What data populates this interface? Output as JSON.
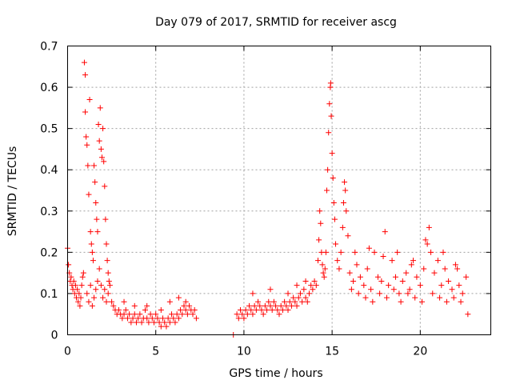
{
  "chart_data": {
    "type": "scatter",
    "title": "Day 079 of 2017, SRMTID for receiver ascg",
    "xlabel": "GPS time / hours",
    "ylabel": "SRMTID / TECUs",
    "xlim": [
      0,
      24
    ],
    "ylim": [
      0,
      0.7
    ],
    "xticks": [
      0,
      5,
      10,
      15,
      20
    ],
    "yticks": [
      0,
      0.1,
      0.2,
      0.3,
      0.4,
      0.5,
      0.6,
      0.7
    ],
    "xtick_labels": [
      "0",
      "5",
      "10",
      "15",
      "20"
    ],
    "ytick_labels": [
      "0",
      "0.1",
      "0.2",
      "0.3",
      "0.4",
      "0.5",
      "0.6",
      "0.7"
    ],
    "grid": true,
    "marker": "+",
    "color": "#ff0000",
    "series": [
      {
        "name": "SRMTID",
        "points": [
          [
            0.0,
            0.21
          ],
          [
            0.05,
            0.17
          ],
          [
            0.1,
            0.15
          ],
          [
            0.15,
            0.13
          ],
          [
            0.2,
            0.14
          ],
          [
            0.25,
            0.12
          ],
          [
            0.3,
            0.11
          ],
          [
            0.35,
            0.13
          ],
          [
            0.4,
            0.1
          ],
          [
            0.45,
            0.12
          ],
          [
            0.5,
            0.09
          ],
          [
            0.55,
            0.11
          ],
          [
            0.6,
            0.08
          ],
          [
            0.65,
            0.1
          ],
          [
            0.7,
            0.07
          ],
          [
            0.75,
            0.09
          ],
          [
            0.8,
            0.12
          ],
          [
            0.85,
            0.14
          ],
          [
            0.9,
            0.15
          ],
          [
            0.95,
            0.66
          ],
          [
            1.0,
            0.63
          ],
          [
            1.0,
            0.54
          ],
          [
            1.05,
            0.48
          ],
          [
            1.1,
            0.46
          ],
          [
            1.15,
            0.41
          ],
          [
            1.2,
            0.34
          ],
          [
            1.25,
            0.57
          ],
          [
            1.3,
            0.25
          ],
          [
            1.35,
            0.22
          ],
          [
            1.4,
            0.2
          ],
          [
            1.45,
            0.18
          ],
          [
            1.5,
            0.41
          ],
          [
            1.55,
            0.37
          ],
          [
            1.6,
            0.32
          ],
          [
            1.65,
            0.28
          ],
          [
            1.7,
            0.25
          ],
          [
            1.75,
            0.51
          ],
          [
            1.8,
            0.47
          ],
          [
            1.85,
            0.55
          ],
          [
            1.9,
            0.45
          ],
          [
            1.95,
            0.43
          ],
          [
            2.0,
            0.5
          ],
          [
            2.05,
            0.42
          ],
          [
            2.1,
            0.36
          ],
          [
            2.15,
            0.28
          ],
          [
            2.2,
            0.22
          ],
          [
            2.25,
            0.18
          ],
          [
            2.3,
            0.15
          ],
          [
            2.35,
            0.13
          ],
          [
            2.4,
            0.12
          ],
          [
            1.1,
            0.1
          ],
          [
            1.2,
            0.08
          ],
          [
            1.3,
            0.12
          ],
          [
            1.4,
            0.07
          ],
          [
            1.5,
            0.09
          ],
          [
            1.6,
            0.11
          ],
          [
            1.7,
            0.13
          ],
          [
            1.8,
            0.16
          ],
          [
            1.9,
            0.12
          ],
          [
            2.0,
            0.09
          ],
          [
            2.1,
            0.11
          ],
          [
            2.2,
            0.08
          ],
          [
            2.3,
            0.1
          ],
          [
            2.5,
            0.08
          ],
          [
            2.6,
            0.07
          ],
          [
            2.7,
            0.06
          ],
          [
            2.8,
            0.05
          ],
          [
            2.9,
            0.06
          ],
          [
            3.0,
            0.05
          ],
          [
            3.1,
            0.04
          ],
          [
            3.2,
            0.05
          ],
          [
            3.3,
            0.06
          ],
          [
            3.4,
            0.04
          ],
          [
            3.5,
            0.05
          ],
          [
            3.6,
            0.03
          ],
          [
            3.7,
            0.04
          ],
          [
            3.8,
            0.05
          ],
          [
            3.9,
            0.03
          ],
          [
            4.0,
            0.04
          ],
          [
            4.1,
            0.05
          ],
          [
            4.2,
            0.03
          ],
          [
            4.3,
            0.04
          ],
          [
            4.4,
            0.06
          ],
          [
            4.5,
            0.04
          ],
          [
            4.6,
            0.03
          ],
          [
            4.7,
            0.05
          ],
          [
            4.8,
            0.04
          ],
          [
            4.9,
            0.03
          ],
          [
            5.0,
            0.05
          ],
          [
            5.1,
            0.04
          ],
          [
            5.2,
            0.03
          ],
          [
            5.3,
            0.02
          ],
          [
            5.4,
            0.04
          ],
          [
            5.5,
            0.03
          ],
          [
            5.6,
            0.02
          ],
          [
            5.7,
            0.04
          ],
          [
            5.8,
            0.03
          ],
          [
            5.9,
            0.05
          ],
          [
            6.0,
            0.04
          ],
          [
            6.1,
            0.03
          ],
          [
            6.2,
            0.05
          ],
          [
            6.3,
            0.04
          ],
          [
            6.4,
            0.06
          ],
          [
            6.5,
            0.05
          ],
          [
            6.6,
            0.07
          ],
          [
            6.7,
            0.06
          ],
          [
            6.8,
            0.05
          ],
          [
            6.9,
            0.07
          ],
          [
            7.0,
            0.06
          ],
          [
            7.1,
            0.05
          ],
          [
            7.2,
            0.06
          ],
          [
            7.3,
            0.04
          ],
          [
            3.2,
            0.08
          ],
          [
            3.8,
            0.07
          ],
          [
            4.5,
            0.07
          ],
          [
            5.3,
            0.06
          ],
          [
            5.8,
            0.08
          ],
          [
            6.3,
            0.09
          ],
          [
            6.7,
            0.08
          ],
          [
            9.4,
            0.0
          ],
          [
            9.6,
            0.05
          ],
          [
            9.7,
            0.04
          ],
          [
            9.8,
            0.06
          ],
          [
            9.9,
            0.05
          ],
          [
            10.0,
            0.04
          ],
          [
            10.1,
            0.06
          ],
          [
            10.2,
            0.05
          ],
          [
            10.3,
            0.07
          ],
          [
            10.4,
            0.06
          ],
          [
            10.5,
            0.05
          ],
          [
            10.6,
            0.07
          ],
          [
            10.7,
            0.06
          ],
          [
            10.8,
            0.08
          ],
          [
            10.9,
            0.07
          ],
          [
            11.0,
            0.06
          ],
          [
            11.1,
            0.05
          ],
          [
            11.2,
            0.07
          ],
          [
            11.3,
            0.06
          ],
          [
            11.4,
            0.08
          ],
          [
            11.5,
            0.07
          ],
          [
            11.6,
            0.06
          ],
          [
            11.7,
            0.08
          ],
          [
            11.8,
            0.07
          ],
          [
            11.9,
            0.06
          ],
          [
            12.0,
            0.05
          ],
          [
            12.1,
            0.07
          ],
          [
            12.2,
            0.06
          ],
          [
            12.3,
            0.08
          ],
          [
            12.4,
            0.07
          ],
          [
            12.5,
            0.06
          ],
          [
            12.6,
            0.08
          ],
          [
            12.7,
            0.07
          ],
          [
            12.8,
            0.09
          ],
          [
            12.9,
            0.08
          ],
          [
            13.0,
            0.07
          ],
          [
            13.1,
            0.09
          ],
          [
            13.2,
            0.1
          ],
          [
            13.3,
            0.08
          ],
          [
            13.4,
            0.11
          ],
          [
            13.5,
            0.09
          ],
          [
            13.6,
            0.08
          ],
          [
            13.7,
            0.1
          ],
          [
            13.8,
            0.12
          ],
          [
            13.9,
            0.11
          ],
          [
            14.0,
            0.13
          ],
          [
            14.1,
            0.12
          ],
          [
            10.5,
            0.1
          ],
          [
            11.5,
            0.11
          ],
          [
            12.5,
            0.1
          ],
          [
            13.0,
            0.12
          ],
          [
            13.5,
            0.13
          ],
          [
            14.2,
            0.18
          ],
          [
            14.25,
            0.23
          ],
          [
            14.3,
            0.3
          ],
          [
            14.35,
            0.27
          ],
          [
            14.4,
            0.2
          ],
          [
            14.45,
            0.17
          ],
          [
            14.5,
            0.15
          ],
          [
            14.55,
            0.14
          ],
          [
            14.6,
            0.16
          ],
          [
            14.65,
            0.2
          ],
          [
            14.7,
            0.35
          ],
          [
            14.75,
            0.4
          ],
          [
            14.8,
            0.49
          ],
          [
            14.85,
            0.56
          ],
          [
            14.9,
            0.6
          ],
          [
            14.92,
            0.61
          ],
          [
            14.95,
            0.53
          ],
          [
            15.0,
            0.44
          ],
          [
            15.05,
            0.38
          ],
          [
            15.1,
            0.32
          ],
          [
            15.15,
            0.28
          ],
          [
            15.2,
            0.22
          ],
          [
            15.3,
            0.18
          ],
          [
            15.4,
            0.16
          ],
          [
            15.5,
            0.2
          ],
          [
            15.6,
            0.26
          ],
          [
            15.65,
            0.32
          ],
          [
            15.7,
            0.37
          ],
          [
            15.75,
            0.35
          ],
          [
            15.8,
            0.3
          ],
          [
            15.9,
            0.24
          ],
          [
            16.0,
            0.15
          ],
          [
            16.2,
            0.13
          ],
          [
            16.4,
            0.17
          ],
          [
            16.6,
            0.14
          ],
          [
            16.8,
            0.12
          ],
          [
            17.0,
            0.16
          ],
          [
            17.2,
            0.11
          ],
          [
            17.4,
            0.2
          ],
          [
            17.6,
            0.14
          ],
          [
            17.8,
            0.13
          ],
          [
            18.0,
            0.25
          ],
          [
            18.2,
            0.12
          ],
          [
            18.4,
            0.18
          ],
          [
            18.6,
            0.14
          ],
          [
            18.8,
            0.1
          ],
          [
            19.0,
            0.13
          ],
          [
            19.2,
            0.15
          ],
          [
            19.4,
            0.11
          ],
          [
            19.6,
            0.18
          ],
          [
            19.8,
            0.14
          ],
          [
            20.0,
            0.12
          ],
          [
            20.2,
            0.16
          ],
          [
            20.4,
            0.22
          ],
          [
            20.5,
            0.26
          ],
          [
            20.6,
            0.2
          ],
          [
            20.8,
            0.15
          ],
          [
            21.0,
            0.18
          ],
          [
            21.2,
            0.12
          ],
          [
            21.4,
            0.16
          ],
          [
            21.6,
            0.13
          ],
          [
            21.8,
            0.11
          ],
          [
            22.0,
            0.17
          ],
          [
            22.2,
            0.12
          ],
          [
            22.4,
            0.1
          ],
          [
            22.6,
            0.14
          ],
          [
            22.7,
            0.05
          ],
          [
            16.1,
            0.11
          ],
          [
            16.5,
            0.1
          ],
          [
            16.9,
            0.09
          ],
          [
            17.3,
            0.08
          ],
          [
            17.7,
            0.1
          ],
          [
            18.1,
            0.09
          ],
          [
            18.5,
            0.11
          ],
          [
            18.9,
            0.08
          ],
          [
            19.3,
            0.1
          ],
          [
            19.7,
            0.09
          ],
          [
            20.1,
            0.08
          ],
          [
            20.7,
            0.1
          ],
          [
            21.1,
            0.09
          ],
          [
            21.5,
            0.08
          ],
          [
            21.9,
            0.09
          ],
          [
            22.3,
            0.08
          ],
          [
            16.3,
            0.2
          ],
          [
            17.1,
            0.21
          ],
          [
            17.9,
            0.19
          ],
          [
            18.7,
            0.2
          ],
          [
            19.5,
            0.17
          ],
          [
            20.3,
            0.23
          ],
          [
            21.3,
            0.2
          ],
          [
            22.1,
            0.16
          ]
        ]
      }
    ]
  }
}
